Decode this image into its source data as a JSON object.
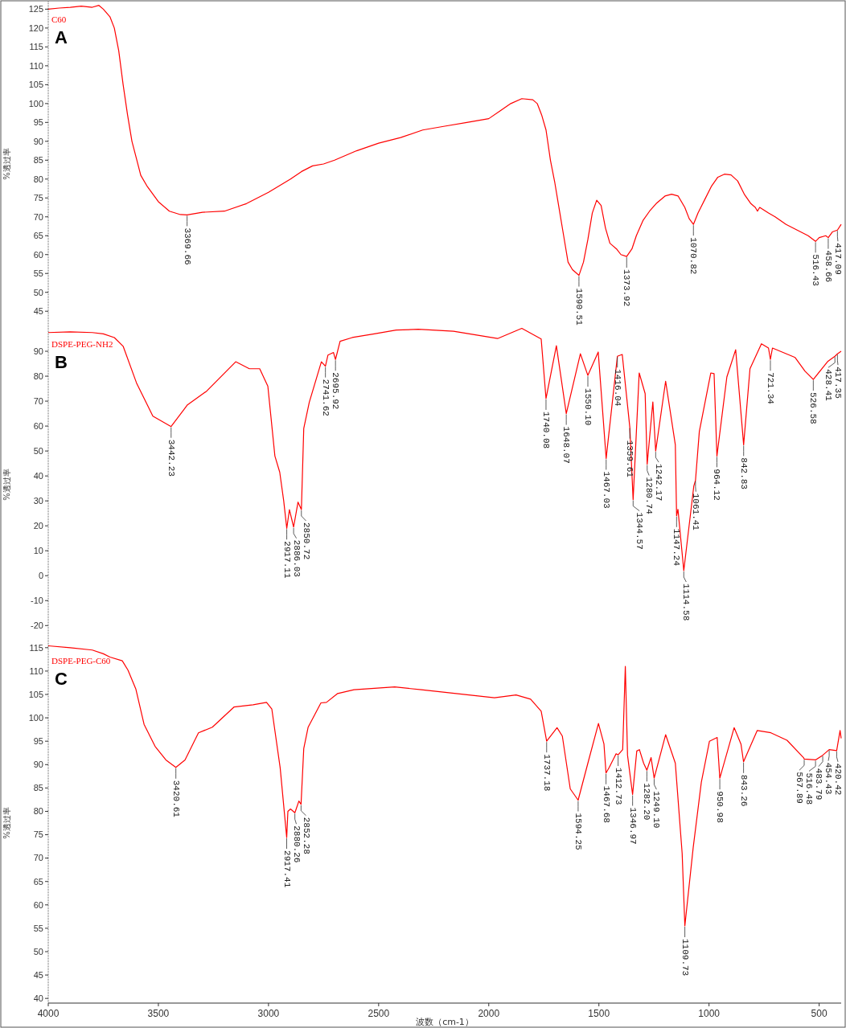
{
  "chart_data": [
    {
      "type": "line",
      "title": "A",
      "ylabel": "%透过率",
      "xlim": [
        4000,
        400
      ],
      "ylim": [
        41,
        127
      ],
      "yticks": [
        45,
        50,
        55,
        60,
        65,
        70,
        75,
        80,
        85,
        90,
        95,
        100,
        105,
        110,
        115,
        120,
        125
      ],
      "tick_labels": "y",
      "series": [
        {
          "name": "C60",
          "color": "#ff0000",
          "x": [
            4000,
            3950,
            3900,
            3850,
            3800,
            3770,
            3750,
            3720,
            3700,
            3680,
            3660,
            3640,
            3620,
            3600,
            3580,
            3550,
            3500,
            3450,
            3400,
            3369.66,
            3300,
            3200,
            3100,
            3000,
            2900,
            2850,
            2800,
            2750,
            2700,
            2600,
            2500,
            2400,
            2300,
            2200,
            2100,
            2000,
            1950,
            1900,
            1850,
            1800,
            1780,
            1760,
            1740,
            1720,
            1700,
            1680,
            1660,
            1640,
            1620,
            1600,
            1590.51,
            1570,
            1550,
            1530,
            1510,
            1490,
            1470,
            1450,
            1420,
            1400,
            1373.92,
            1350,
            1330,
            1300,
            1270,
            1240,
            1200,
            1170,
            1140,
            1110,
            1090,
            1070.82,
            1050,
            1020,
            990,
            960,
            930,
            900,
            870,
            840,
            810,
            790,
            780,
            770,
            730,
            700,
            650,
            600,
            550,
            516.43,
            500,
            470,
            458.66,
            440,
            417,
            400
          ],
          "values": [
            125,
            125.3,
            125.5,
            125.8,
            125.5,
            126,
            125,
            123,
            120,
            114,
            105,
            97,
            90,
            85.5,
            81,
            78,
            74,
            71.5,
            70.6,
            70.5,
            71.2,
            71.5,
            73.5,
            76.5,
            80,
            82,
            83.5,
            84,
            85,
            87.5,
            89.5,
            91,
            93,
            94,
            95,
            96,
            98,
            100,
            101.3,
            101,
            100,
            97,
            93,
            85,
            79,
            72,
            65,
            58,
            56,
            55,
            54.5,
            58,
            64,
            71,
            74.4,
            73,
            67,
            63,
            61.5,
            60,
            59.5,
            61.5,
            65,
            69,
            71.5,
            73.5,
            75.5,
            76,
            75.5,
            72.5,
            69.5,
            68,
            71,
            74.5,
            78,
            80.5,
            81.3,
            81.1,
            79.5,
            76,
            73.5,
            72.5,
            71.5,
            72.5,
            71,
            70,
            68,
            66.5,
            65,
            63.5,
            64.5,
            65,
            64.5,
            66,
            66.5,
            68
          ]
        }
      ],
      "annotations": [
        {
          "text": "3369.66",
          "x": 3369.66,
          "y": 70.5
        },
        {
          "text": "1590.51",
          "x": 1590.51,
          "y": 54.5
        },
        {
          "text": "1373.92",
          "x": 1373.92,
          "y": 59.5
        },
        {
          "text": "1070.82",
          "x": 1070.82,
          "y": 68
        },
        {
          "text": "516.43",
          "x": 516.43,
          "y": 63.5
        },
        {
          "text": "458.66",
          "x": 458.66,
          "y": 64.5
        },
        {
          "text": "417.09",
          "x": 417,
          "y": 66.5
        }
      ]
    },
    {
      "type": "line",
      "title": "B",
      "ylabel": "%透过率",
      "xlim": [
        4000,
        400
      ],
      "ylim": [
        -27,
        100
      ],
      "yticks": [
        -20,
        -10,
        0,
        10,
        20,
        30,
        40,
        50,
        60,
        70,
        80,
        90
      ],
      "tick_labels": "y",
      "series": [
        {
          "name": "DSPE-PEG-NH2",
          "color": "#ff0000",
          "x": [
            4000,
            3900,
            3800,
            3750,
            3700,
            3660,
            3598,
            3525,
            3442.23,
            3368,
            3281,
            3149,
            3087,
            3040,
            3003,
            2971,
            2949,
            2931,
            2917.11,
            2905,
            2886.03,
            2866,
            2850.72,
            2840,
            2815,
            2760,
            2741.62,
            2730,
            2705,
            2695.92,
            2675,
            2620,
            2520,
            2420,
            2320,
            2160,
            1960,
            1850,
            1762,
            1740.08,
            1693,
            1648.07,
            1584,
            1550.1,
            1503,
            1467.03,
            1416.04,
            1394,
            1359.61,
            1344.57,
            1317,
            1290,
            1280.74,
            1255,
            1242.17,
            1197,
            1153,
            1147.24,
            1141,
            1114.58,
            1069,
            1061.41,
            1044,
            992,
            977,
            964.12,
            919,
            879,
            842.83,
            814,
            762,
            730,
            721.34,
            712,
            609,
            564,
            526.58,
            460,
            428.41,
            417,
            400
          ],
          "values": [
            97.5,
            97.8,
            97.5,
            97,
            95.5,
            92,
            77,
            64,
            59.8,
            68.5,
            74,
            85.8,
            83,
            83,
            76,
            48,
            41.5,
            30,
            19,
            26.5,
            19.5,
            29.5,
            26.5,
            59,
            69.5,
            85.8,
            84,
            88.5,
            89.5,
            86.7,
            94,
            95.5,
            97,
            98.5,
            98.8,
            98,
            95.1,
            99.2,
            94.9,
            71,
            92.2,
            65,
            89,
            80.3,
            89.7,
            47,
            88,
            88.7,
            59.5,
            30.5,
            81.3,
            73,
            44.7,
            69.7,
            50,
            78,
            52.5,
            24,
            26.6,
            2,
            36,
            38.2,
            57.8,
            81.3,
            81,
            48,
            79.7,
            90.6,
            52.5,
            83,
            93,
            91.3,
            86.7,
            91.3,
            87.5,
            82,
            78.7,
            86,
            88,
            89,
            90
          ]
        }
      ],
      "annotations": [
        {
          "text": "3442.23",
          "x": 3442.23,
          "y": 59.8
        },
        {
          "text": "2917.11",
          "x": 2917.11,
          "y": 19
        },
        {
          "text": "2886.03",
          "x": 2886.03,
          "y": 19.5
        },
        {
          "text": "2850.72",
          "x": 2850.72,
          "y": 26.5
        },
        {
          "text": "2741.62",
          "x": 2741.62,
          "y": 84
        },
        {
          "text": "2695.92",
          "x": 2695.92,
          "y": 86.7
        },
        {
          "text": "1740.08",
          "x": 1740.08,
          "y": 71
        },
        {
          "text": "1648.07",
          "x": 1648.07,
          "y": 65
        },
        {
          "text": "1550.10",
          "x": 1550.1,
          "y": 80.3
        },
        {
          "text": "1467.03",
          "x": 1467.03,
          "y": 47
        },
        {
          "text": "1416.04",
          "x": 1416.04,
          "y": 88
        },
        {
          "text": "1359.61",
          "x": 1359.61,
          "y": 59.5
        },
        {
          "text": "1344.57",
          "x": 1344.57,
          "y": 30.5
        },
        {
          "text": "1280.74",
          "x": 1280.74,
          "y": 44.7
        },
        {
          "text": "1242.17",
          "x": 1242.17,
          "y": 50
        },
        {
          "text": "1147.24",
          "x": 1147.24,
          "y": 24
        },
        {
          "text": "1114.58",
          "x": 1114.58,
          "y": 2
        },
        {
          "text": "1061.41",
          "x": 1061.41,
          "y": 38.2
        },
        {
          "text": "964.12",
          "x": 964.12,
          "y": 48
        },
        {
          "text": "842.83",
          "x": 842.83,
          "y": 52.5
        },
        {
          "text": "721.34",
          "x": 721.34,
          "y": 86.7
        },
        {
          "text": "526.58",
          "x": 526.58,
          "y": 78.7
        },
        {
          "text": "428.41",
          "x": 428.41,
          "y": 88
        },
        {
          "text": "417.35",
          "x": 417,
          "y": 89
        }
      ]
    },
    {
      "type": "line",
      "title": "C",
      "ylabel": "%透过率",
      "xlabel": "波数（cm-1）",
      "xlim": [
        4000,
        400
      ],
      "ylim": [
        39,
        116
      ],
      "yticks": [
        40,
        45,
        50,
        55,
        60,
        65,
        70,
        75,
        80,
        85,
        90,
        95,
        100,
        105,
        110,
        115
      ],
      "xticks": [
        4000,
        3500,
        3000,
        2500,
        2000,
        1500,
        1000,
        500
      ],
      "series": [
        {
          "name": "DSPE-PEG-C60",
          "color": "#ff0000",
          "x": [
            4000,
            3900,
            3800,
            3750,
            3720,
            3664,
            3638,
            3602,
            3565,
            3515,
            3466,
            3420.61,
            3379,
            3318,
            3255,
            3157,
            3070,
            3009,
            2985,
            2947,
            2917.41,
            2912,
            2900,
            2880.26,
            2862,
            2852.28,
            2840,
            2820,
            2762,
            2737,
            2686,
            2612,
            2427,
            2306,
            1974,
            1876,
            1810,
            1762,
            1737.18,
            1690,
            1666,
            1630,
            1594.25,
            1550,
            1502,
            1477,
            1467.68,
            1453,
            1422,
            1412.73,
            1392,
            1380,
            1370,
            1346.97,
            1328,
            1316,
            1297,
            1282.2,
            1263,
            1249.1,
            1197,
            1153,
            1122,
            1109.73,
            1072,
            1035,
            998,
            963,
            950.98,
            886,
            855,
            843.26,
            781,
            719,
            646,
            571,
            567.89,
            516.48,
            483.79,
            454.43,
            420.42,
            405,
            400
          ],
          "values": [
            115.4,
            115,
            114.5,
            113.7,
            113,
            112.2,
            110.2,
            106.1,
            98.6,
            93.9,
            91,
            89.4,
            91,
            96.8,
            98,
            102.3,
            102.8,
            103.3,
            101.9,
            89.3,
            74.4,
            80,
            80.5,
            79.7,
            82.2,
            81.5,
            93.4,
            98,
            103.2,
            103.3,
            105.2,
            106,
            106.6,
            106,
            104.3,
            104.9,
            104,
            101.4,
            95,
            97.9,
            96.1,
            84.8,
            82.4,
            90.3,
            98.8,
            94.4,
            88.2,
            89.4,
            92.3,
            92.1,
            93.2,
            111,
            92,
            83.6,
            92.9,
            93.2,
            90.3,
            88.8,
            91.5,
            87.1,
            96.4,
            90.3,
            71,
            55.5,
            72.2,
            86.2,
            95,
            95.8,
            87.1,
            97.9,
            94.4,
            90.6,
            97.3,
            96.8,
            95.2,
            91.5,
            91.2,
            91,
            92,
            93.2,
            93,
            97.3,
            95.6
          ]
        }
      ],
      "annotations": [
        {
          "text": "3420.61",
          "x": 3420.61,
          "y": 89.4
        },
        {
          "text": "2917.41",
          "x": 2917.41,
          "y": 74.4
        },
        {
          "text": "2880.26",
          "x": 2880.26,
          "y": 79.7
        },
        {
          "text": "2852.28",
          "x": 2852.28,
          "y": 81.5
        },
        {
          "text": "1737.18",
          "x": 1737.18,
          "y": 95
        },
        {
          "text": "1594.25",
          "x": 1594.25,
          "y": 82.4
        },
        {
          "text": "1467.68",
          "x": 1467.68,
          "y": 88.2
        },
        {
          "text": "1412.73",
          "x": 1412.73,
          "y": 92.1
        },
        {
          "text": "1346.97",
          "x": 1346.97,
          "y": 83.6
        },
        {
          "text": "1282.20",
          "x": 1282.2,
          "y": 88.8
        },
        {
          "text": "1249.10",
          "x": 1249.1,
          "y": 87.1
        },
        {
          "text": "1109.73",
          "x": 1109.73,
          "y": 55.5
        },
        {
          "text": "950.98",
          "x": 950.98,
          "y": 87.1
        },
        {
          "text": "843.26",
          "x": 843.26,
          "y": 90.6
        },
        {
          "text": "567.89",
          "x": 567.89,
          "y": 91.2
        },
        {
          "text": "516.48",
          "x": 516.48,
          "y": 91
        },
        {
          "text": "483.79",
          "x": 483.79,
          "y": 92
        },
        {
          "text": "454.43",
          "x": 454.43,
          "y": 93.2
        },
        {
          "text": "420.42",
          "x": 420.42,
          "y": 93
        }
      ]
    }
  ]
}
